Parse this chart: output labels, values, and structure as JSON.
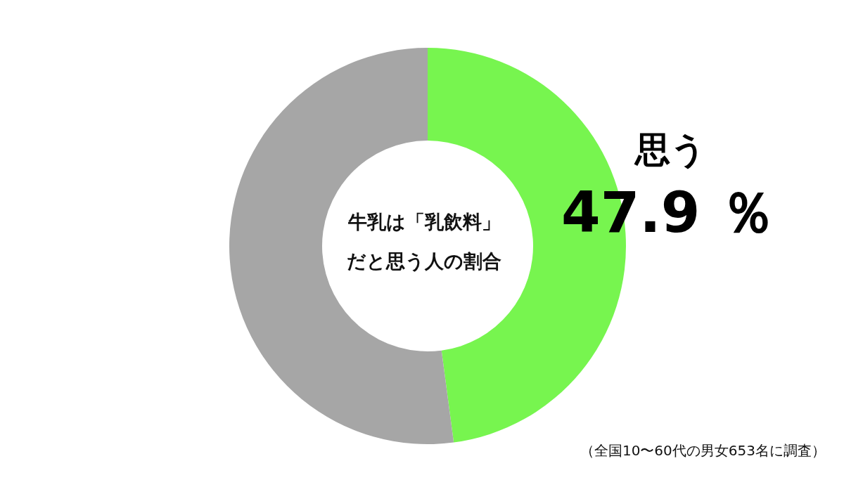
{
  "chart_data": {
    "type": "donut",
    "title": "牛乳は「乳飲料」だと思う人の割合",
    "categories": [
      "思う",
      null
    ],
    "values": [
      47.9,
      52.1
    ],
    "colors": [
      "#77f54f",
      "#a6a6a6"
    ],
    "value_labels": [
      "47.9 ％",
      null
    ],
    "annotations": [
      "（全国10〜60代の男女653名に調査）"
    ]
  }
}
